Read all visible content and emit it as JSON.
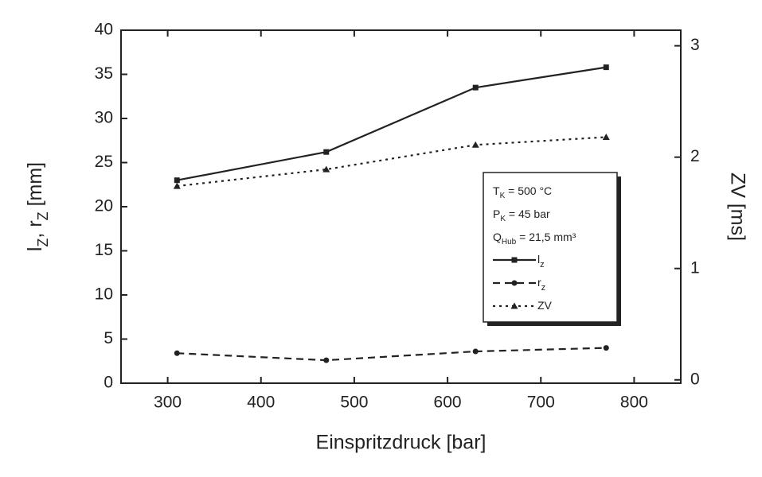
{
  "chart_data": {
    "type": "line",
    "xlabel": "Einspritzdruck [bar]",
    "ylabel": [
      {
        "text": "l"
      },
      {
        "text": "Z",
        "sub": true
      },
      {
        "text": ", r"
      },
      {
        "text": "Z",
        "sub": true
      },
      {
        "text": " [mm]"
      }
    ],
    "y2label": "ZV [ms]",
    "x": [
      310,
      470,
      630,
      770
    ],
    "xlim": [
      250,
      850
    ],
    "xticks": [
      300,
      400,
      500,
      600,
      700,
      800
    ],
    "ylim": [
      0,
      40
    ],
    "yticks": [
      0,
      5,
      10,
      15,
      20,
      25,
      30,
      35,
      40
    ],
    "y2lim": [
      -0.03,
      3.14
    ],
    "y2ticks": [
      0,
      1,
      2,
      3
    ],
    "legend_loc": "center right",
    "annotations": [
      {
        "text": "T",
        "sub": "K",
        "rest": " = 500 °C"
      },
      {
        "text": "P",
        "sub": "K",
        "rest": " = 45 bar"
      },
      {
        "text": "Q",
        "sub": "Hub",
        "rest": " = 21,5 mm³"
      }
    ],
    "series": [
      {
        "name": "l",
        "subscript": "z",
        "color": "#222",
        "linestyle": "solid",
        "marker": "square",
        "values": [
          23,
          26.2,
          33.5,
          35.8
        ]
      },
      {
        "name": "r",
        "subscript": "z",
        "color": "#222",
        "linestyle": "dashed",
        "marker": "circle",
        "values": [
          3.4,
          2.6,
          3.6,
          4.0
        ]
      },
      {
        "name": "ZV",
        "color": "#222",
        "linestyle": "dotted",
        "marker": "triangle",
        "axis": "y2",
        "values": [
          1.74,
          1.89,
          2.11,
          2.18
        ]
      }
    ]
  }
}
